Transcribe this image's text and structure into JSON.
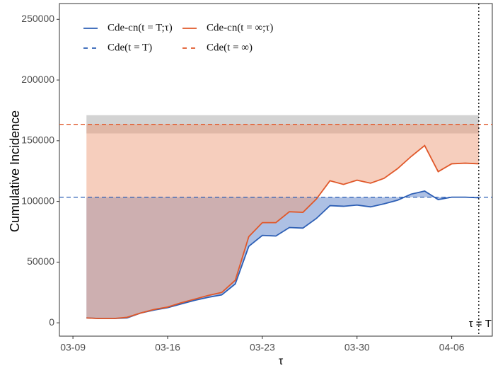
{
  "chart_data": {
    "type": "line",
    "x_label": "τ",
    "y_label": "Cumulative Incidence",
    "x": [
      "03-10",
      "03-11",
      "03-12",
      "03-13",
      "03-14",
      "03-15",
      "03-16",
      "03-17",
      "03-18",
      "03-19",
      "03-20",
      "03-21",
      "03-22",
      "03-23",
      "03-24",
      "03-25",
      "03-26",
      "03-27",
      "03-28",
      "03-29",
      "03-30",
      "03-31",
      "04-01",
      "04-02",
      "04-03",
      "04-04",
      "04-05",
      "04-06",
      "04-07",
      "04-08"
    ],
    "series": [
      {
        "name": "Cde-cn(t = T;τ)",
        "color": "#2d5fb5",
        "fill": "#4a74c4",
        "values": [
          4000,
          3500,
          3500,
          4000,
          8000,
          10500,
          12500,
          15500,
          18500,
          21000,
          23000,
          32000,
          63000,
          72000,
          71500,
          78500,
          78000,
          86000,
          96500,
          96000,
          97000,
          95500,
          98000,
          101000,
          106000,
          108500,
          101500,
          103500,
          103500,
          103000
        ],
        "reference": {
          "name": "Cde(t = T)",
          "value": 103500
        }
      },
      {
        "name": "Cde-cn(t = ∞;τ)",
        "color": "#e0582a",
        "fill": "#ee9e7c",
        "values": [
          4000,
          3500,
          3500,
          4500,
          8000,
          11000,
          13000,
          16500,
          19500,
          22500,
          25000,
          35000,
          71000,
          82500,
          82500,
          91500,
          91000,
          102000,
          117000,
          114000,
          117500,
          115000,
          119000,
          127000,
          137000,
          146000,
          124500,
          131000,
          131500,
          131000
        ],
        "reference": {
          "name": "Cde(t = ∞)",
          "value": 163500
        }
      }
    ],
    "band": {
      "from": 156000,
      "to": 171000,
      "color": "#c8c8c8"
    },
    "vline": {
      "x": "04-08",
      "label": "τ = T"
    },
    "xlim": [
      "03-08",
      "04-09"
    ],
    "xticks": [
      "03-09",
      "03-16",
      "03-23",
      "03-30",
      "04-06"
    ],
    "ylim": [
      -11000,
      263000
    ],
    "yticks": [
      0,
      50000,
      100000,
      150000,
      200000,
      250000
    ]
  }
}
